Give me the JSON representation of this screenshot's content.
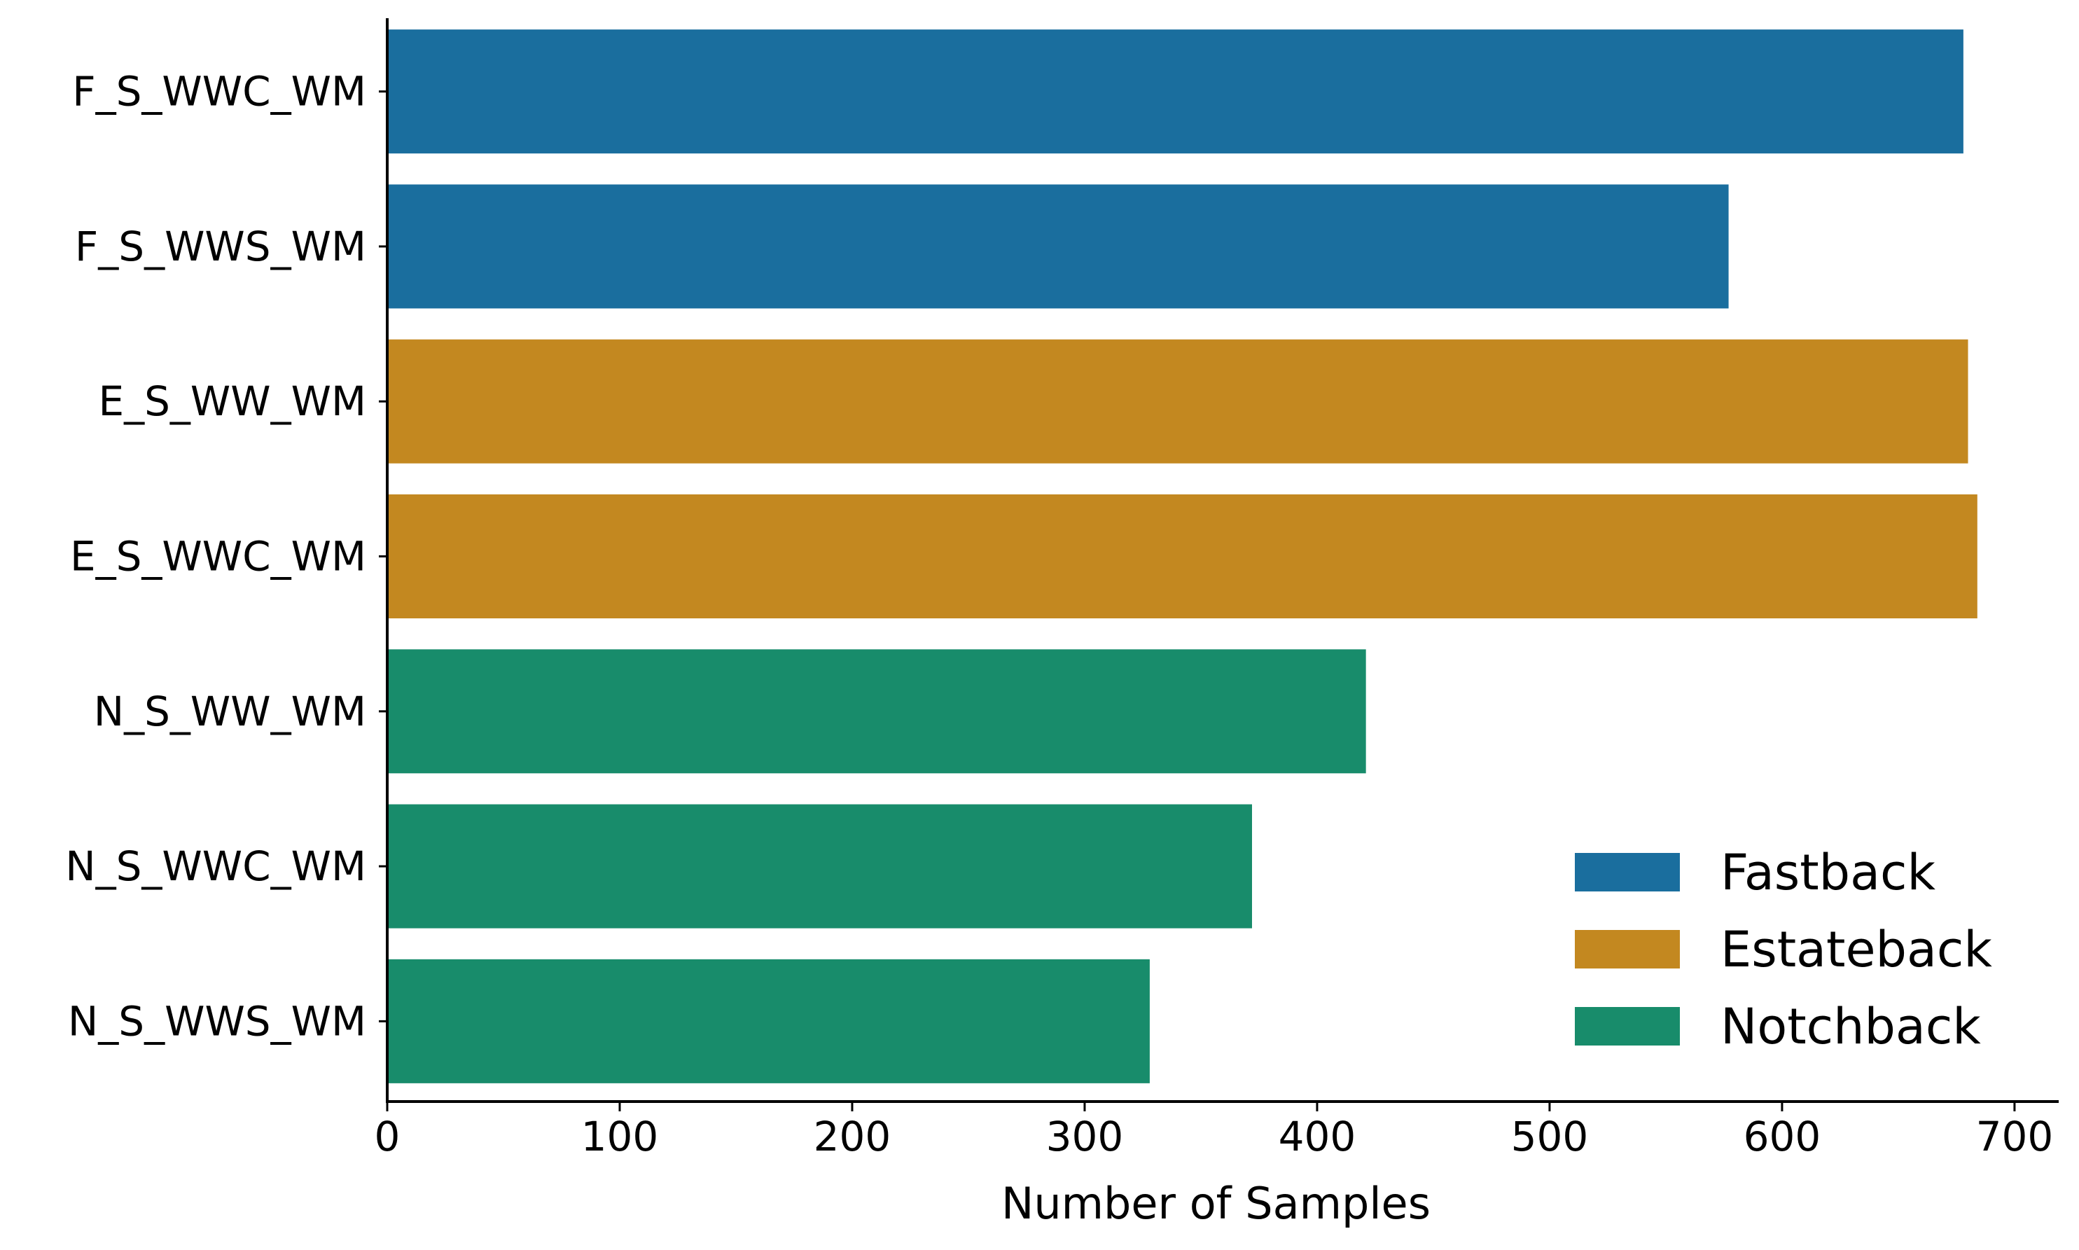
{
  "chart_data": {
    "type": "bar",
    "orientation": "horizontal",
    "categories": [
      "F_S_WWC_WM",
      "F_S_WWS_WM",
      "E_S_WW_WM",
      "E_S_WWC_WM",
      "N_S_WW_WM",
      "N_S_WWC_WM",
      "N_S_WWS_WM"
    ],
    "values": [
      678,
      577,
      680,
      684,
      421,
      372,
      328
    ],
    "bar_groups": [
      "Fastback",
      "Fastback",
      "Estateback",
      "Estateback",
      "Notchback",
      "Notchback",
      "Notchback"
    ],
    "series": [
      {
        "name": "Fastback",
        "color": "#1a6e9e"
      },
      {
        "name": "Estateback",
        "color": "#c38820"
      },
      {
        "name": "Notchback",
        "color": "#188c6b"
      }
    ],
    "title": "",
    "xlabel": "Number of Samples",
    "ylabel": "",
    "xlim": [
      0,
      719
    ],
    "xticks": [
      0,
      100,
      200,
      300,
      400,
      500,
      600,
      700
    ],
    "xtick_labels": [
      "0",
      "100",
      "200",
      "300",
      "400",
      "500",
      "600",
      "700"
    ],
    "grid": false,
    "legend_position": "lower-right"
  }
}
